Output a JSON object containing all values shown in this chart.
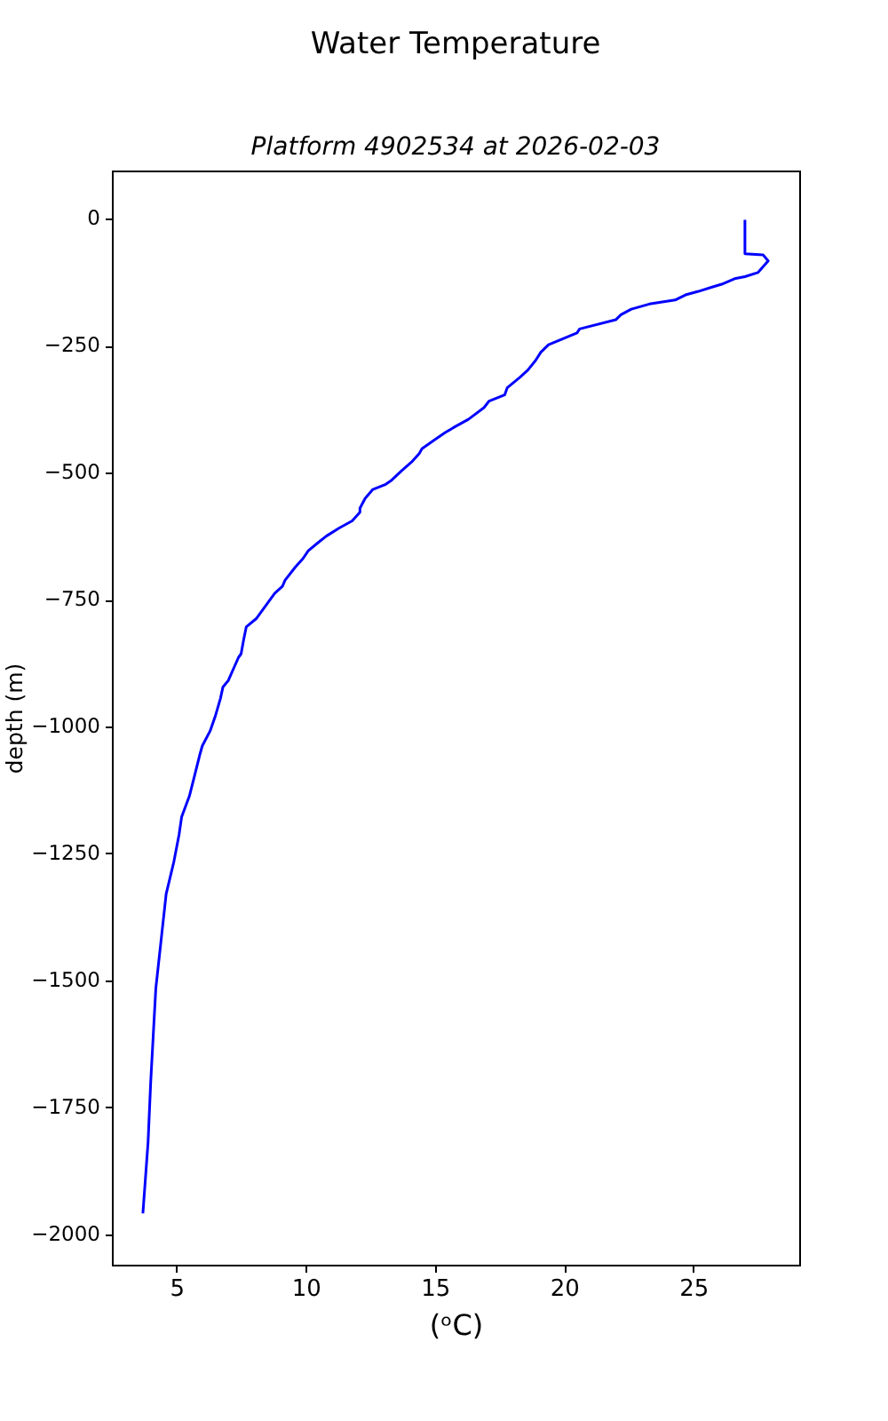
{
  "chart_data": {
    "type": "line",
    "title": "Water Temperature",
    "subtitle": "Platform 4902534 at 2026-02-03",
    "xlabel": "(ᵒC)",
    "ylabel": "depth (m)",
    "series": [
      {
        "color": "#0000ff",
        "x": [
          27.0,
          27.0,
          27.7,
          27.9,
          27.5,
          27.0,
          26.6,
          26.1,
          25.7,
          25.2,
          24.7,
          24.3,
          23.3,
          22.6,
          22.2,
          22.0,
          20.6,
          20.5,
          19.4,
          19.1,
          18.9,
          18.6,
          18.3,
          17.8,
          17.7,
          17.1,
          16.9,
          16.3,
          15.8,
          15.4,
          15.0,
          14.5,
          14.4,
          14.1,
          13.7,
          13.3,
          13.1,
          12.6,
          12.3,
          12.1,
          12.1,
          11.8,
          11.3,
          10.8,
          10.5,
          10.1,
          9.9,
          9.6,
          9.2,
          9.1,
          8.8,
          8.5,
          8.1,
          7.7,
          7.6,
          7.5,
          7.4,
          7.0,
          6.8,
          6.7,
          6.5,
          6.3,
          6.0,
          5.9,
          5.7,
          5.5,
          5.2,
          5.1,
          4.9,
          4.6,
          4.4,
          4.2,
          4.1,
          4.0,
          3.9,
          3.7
        ],
        "values": [
          -2,
          -69,
          -71,
          -83,
          -106,
          -114,
          -118,
          -129,
          -135,
          -143,
          -150,
          -160,
          -168,
          -178,
          -189,
          -199,
          -217,
          -225,
          -248,
          -263,
          -279,
          -298,
          -312,
          -333,
          -347,
          -359,
          -372,
          -395,
          -409,
          -421,
          -435,
          -453,
          -462,
          -479,
          -497,
          -516,
          -523,
          -533,
          -551,
          -570,
          -578,
          -595,
          -609,
          -625,
          -637,
          -654,
          -669,
          -686,
          -712,
          -724,
          -738,
          -759,
          -787,
          -804,
          -829,
          -857,
          -864,
          -910,
          -922,
          -945,
          -980,
          -1009,
          -1038,
          -1056,
          -1097,
          -1137,
          -1178,
          -1213,
          -1266,
          -1330,
          -1423,
          -1516,
          -1609,
          -1703,
          -1819,
          -1959
        ]
      }
    ],
    "xlim": [
      2.5,
      29.1
    ],
    "xticks": [
      5,
      10,
      15,
      20,
      25
    ],
    "ylim": [
      -2060,
      95
    ],
    "yticks": [
      0,
      -250,
      -500,
      -750,
      -1000,
      -1250,
      -1500,
      -1750,
      -2000
    ]
  }
}
